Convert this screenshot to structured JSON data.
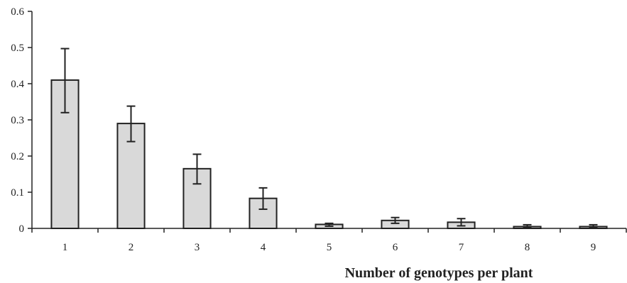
{
  "chart_data": {
    "type": "bar",
    "title": "",
    "xlabel": "Number of genotypes per plant",
    "ylabel": "",
    "categories": [
      "1",
      "2",
      "3",
      "4",
      "5",
      "6",
      "7",
      "8",
      "9"
    ],
    "values": [
      0.41,
      0.29,
      0.165,
      0.083,
      0.011,
      0.022,
      0.017,
      0.005,
      0.005
    ],
    "error_low": [
      0.32,
      0.24,
      0.123,
      0.053,
      0.006,
      0.014,
      0.007,
      0.002,
      0.002
    ],
    "error_high": [
      0.497,
      0.338,
      0.205,
      0.112,
      0.014,
      0.03,
      0.027,
      0.01,
      0.01
    ],
    "ylim": [
      0,
      0.6
    ],
    "yticks": [
      "0",
      "0.1",
      "0.2",
      "0.3",
      "0.4",
      "0.5",
      "0.6"
    ],
    "grid": false,
    "legend": "none",
    "bar_color": "#d9d9d9",
    "bar_edge_color": "#222222"
  }
}
